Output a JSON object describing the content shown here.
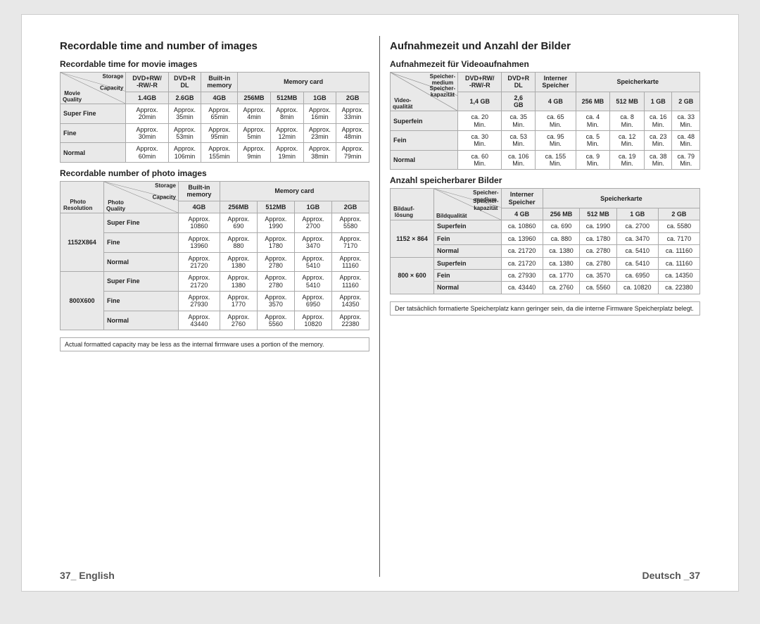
{
  "left": {
    "title": "Recordable time and number of images",
    "movie": {
      "heading": "Recordable time for movie images",
      "diag_top": "Storage",
      "diag_mid": "Capacity",
      "diag_bot": "Movie\nQuality",
      "cols": [
        "DVD+RW/\n-RW/-R",
        "DVD+R\nDL",
        "Built-in\nmemory",
        "Memory card"
      ],
      "caps": [
        "1.4GB",
        "2.6GB",
        "4GB",
        "256MB",
        "512MB",
        "1GB",
        "2GB"
      ],
      "rows": [
        {
          "q": "Super Fine",
          "v": [
            "Approx.\n20min",
            "Approx.\n35min",
            "Approx.\n65min",
            "Approx.\n4min",
            "Approx.\n8min",
            "Approx.\n16min",
            "Approx.\n33min"
          ]
        },
        {
          "q": "Fine",
          "v": [
            "Approx.\n30min",
            "Approx.\n53min",
            "Approx.\n95min",
            "Approx.\n5min",
            "Approx.\n12min",
            "Approx.\n23min",
            "Approx.\n48min"
          ]
        },
        {
          "q": "Normal",
          "v": [
            "Approx.\n60min",
            "Approx.\n106min",
            "Approx.\n155min",
            "Approx.\n9min",
            "Approx.\n19min",
            "Approx.\n38min",
            "Approx.\n79min"
          ]
        }
      ]
    },
    "photo": {
      "heading": "Recordable number of photo images",
      "diag_top": "Storage",
      "diag_mid": "Capacity",
      "diag_bot1": "Photo\nResolution",
      "diag_bot2": "Photo\nQuality",
      "cols": [
        "Built-in\nmemory",
        "Memory card"
      ],
      "caps": [
        "4GB",
        "256MB",
        "512MB",
        "1GB",
        "2GB"
      ],
      "groups": [
        {
          "res": "1152X864",
          "rows": [
            {
              "q": "Super Fine",
              "v": [
                "Approx.\n10860",
                "Approx.\n690",
                "Approx.\n1990",
                "Approx.\n2700",
                "Approx.\n5580"
              ]
            },
            {
              "q": "Fine",
              "v": [
                "Approx.\n13960",
                "Approx.\n880",
                "Approx.\n1780",
                "Approx.\n3470",
                "Approx.\n7170"
              ]
            },
            {
              "q": "Normal",
              "v": [
                "Approx.\n21720",
                "Approx.\n1380",
                "Approx.\n2780",
                "Approx.\n5410",
                "Approx.\n11160"
              ]
            }
          ]
        },
        {
          "res": "800X600",
          "rows": [
            {
              "q": "Super Fine",
              "v": [
                "Approx.\n21720",
                "Approx.\n1380",
                "Approx.\n2780",
                "Approx.\n5410",
                "Approx.\n11160"
              ]
            },
            {
              "q": "Fine",
              "v": [
                "Approx.\n27930",
                "Approx.\n1770",
                "Approx.\n3570",
                "Approx.\n6950",
                "Approx.\n14350"
              ]
            },
            {
              "q": "Normal",
              "v": [
                "Approx.\n43440",
                "Approx.\n2760",
                "Approx.\n5560",
                "Approx.\n10820",
                "Approx.\n22380"
              ]
            }
          ]
        }
      ]
    },
    "note": "Actual formatted capacity may be less as the internal firmware uses a portion of the memory.",
    "footer": "37_ English"
  },
  "right": {
    "title": "Aufnahmezeit und Anzahl der Bilder",
    "movie": {
      "heading": "Aufnahmezeit für Videoaufnahmen",
      "diag_top": "Speicher-\nmedium",
      "diag_mid": "Speicher-\nkapazität",
      "diag_bot": "Video-\nqualität",
      "cols": [
        "DVD+RW/\n-RW/-R",
        "DVD+R\nDL",
        "Interner\nSpeicher",
        "Speicherkarte"
      ],
      "caps": [
        "1,4 GB",
        "2,6\nGB",
        "4 GB",
        "256 MB",
        "512 MB",
        "1 GB",
        "2 GB"
      ],
      "rows": [
        {
          "q": "Superfein",
          "v": [
            "ca. 20\nMin.",
            "ca. 35\nMin.",
            "ca. 65\nMin.",
            "ca. 4\nMin.",
            "ca. 8\nMin.",
            "ca. 16\nMin.",
            "ca. 33\nMin."
          ]
        },
        {
          "q": "Fein",
          "v": [
            "ca. 30\nMin.",
            "ca. 53\nMin.",
            "ca. 95\nMin.",
            "ca. 5\nMin.",
            "ca. 12\nMin.",
            "ca. 23\nMin.",
            "ca. 48\nMin."
          ]
        },
        {
          "q": "Normal",
          "v": [
            "ca. 60\nMin.",
            "ca. 106\nMin.",
            "ca. 155\nMin.",
            "ca. 9\nMin.",
            "ca. 19\nMin.",
            "ca. 38\nMin.",
            "ca. 79\nMin."
          ]
        }
      ]
    },
    "photo": {
      "heading": "Anzahl speicherbarer Bilder",
      "diag_top": "Speicher-\nmedium",
      "diag_mid": "Speicher-\nkapazität",
      "diag_bot1": "Bildauf-\nlösung",
      "diag_bot2": "Bildqualität",
      "cols": [
        "Interner\nSpeicher",
        "Speicherkarte"
      ],
      "caps": [
        "4 GB",
        "256 MB",
        "512 MB",
        "1 GB",
        "2 GB"
      ],
      "groups": [
        {
          "res": "1152 × 864",
          "rows": [
            {
              "q": "Superfein",
              "v": [
                "ca. 10860",
                "ca. 690",
                "ca. 1990",
                "ca. 2700",
                "ca. 5580"
              ]
            },
            {
              "q": "Fein",
              "v": [
                "ca. 13960",
                "ca. 880",
                "ca. 1780",
                "ca. 3470",
                "ca. 7170"
              ]
            },
            {
              "q": "Normal",
              "v": [
                "ca. 21720",
                "ca. 1380",
                "ca. 2780",
                "ca. 5410",
                "ca. 11160"
              ]
            }
          ]
        },
        {
          "res": "800 × 600",
          "rows": [
            {
              "q": "Superfein",
              "v": [
                "ca. 21720",
                "ca. 1380",
                "ca. 2780",
                "ca. 5410",
                "ca. 11160"
              ]
            },
            {
              "q": "Fein",
              "v": [
                "ca. 27930",
                "ca. 1770",
                "ca. 3570",
                "ca. 6950",
                "ca. 14350"
              ]
            },
            {
              "q": "Normal",
              "v": [
                "ca. 43440",
                "ca. 2760",
                "ca. 5560",
                "ca. 10820",
                "ca. 22380"
              ]
            }
          ]
        }
      ]
    },
    "note": "Der tatsächlich formatierte Speicherplatz kann geringer sein, da die interne Firmware Speicherplatz belegt.",
    "footer": "Deutsch _37"
  },
  "colors": {
    "page_bg": "#ffffff",
    "body_bg": "#e8e8e8",
    "header_bg": "#e9e9e9",
    "border": "#aaaaaa",
    "text": "#222222",
    "footer_text": "#555555"
  },
  "typography": {
    "base_family": "Arial",
    "h1_size": 15,
    "h2_size": 12,
    "table_size": 9
  }
}
